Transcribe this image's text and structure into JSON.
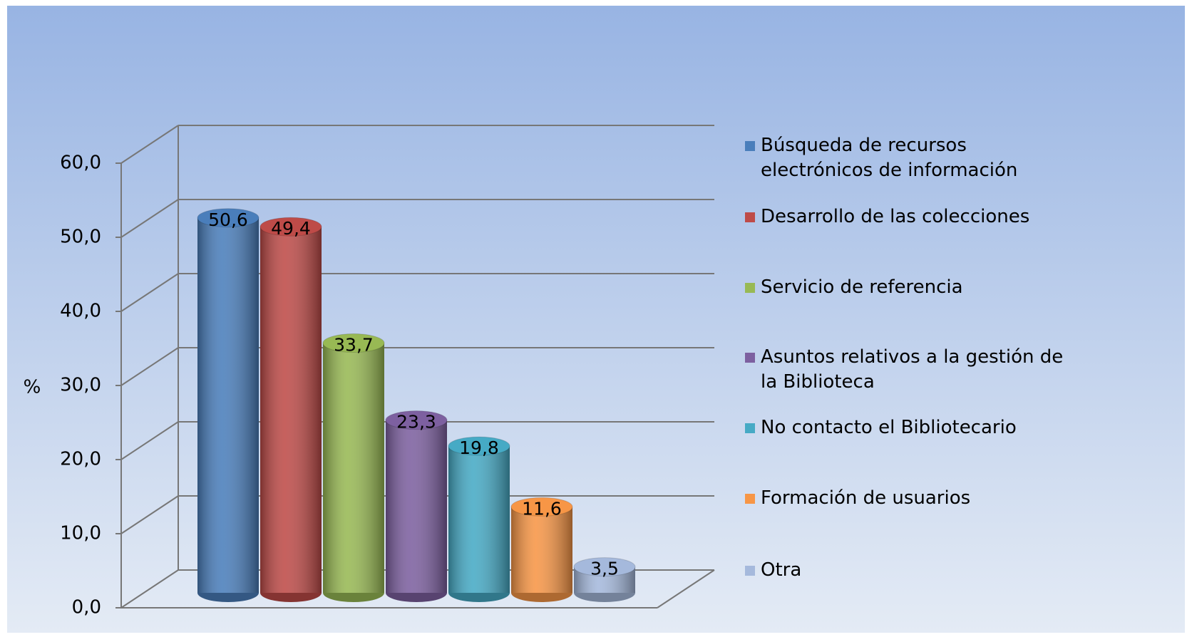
{
  "chart_data": {
    "type": "bar3d",
    "ylabel": "%",
    "categories": [
      "Búsqueda de recursos electrónicos de información",
      "Desarrollo de las colecciones",
      "Servicio de referencia",
      "Asuntos relativos a la  gestión de la Biblioteca",
      "No contacto el Bibliotecario",
      "Formación de usuarios",
      "Otra"
    ],
    "values": [
      50.6,
      49.4,
      33.7,
      23.3,
      19.8,
      11.6,
      3.5
    ],
    "value_labels": [
      "50,6",
      "49,4",
      "33,7",
      "23,3",
      "19,8",
      "11,6",
      "3,5"
    ],
    "colors": [
      "#4a7ebb",
      "#be4b48",
      "#98b954",
      "#7d60a0",
      "#46aac5",
      "#f79646",
      "#a5b9dc"
    ],
    "ylim": [
      0,
      60
    ],
    "yticks": [
      {
        "value": 0,
        "label": "0,0"
      },
      {
        "value": 10,
        "label": "10,0"
      },
      {
        "value": 20,
        "label": "20,0"
      },
      {
        "value": 30,
        "label": "30,0"
      },
      {
        "value": 40,
        "label": "40,0"
      },
      {
        "value": 50,
        "label": "50,0"
      },
      {
        "value": 60,
        "label": "60,0"
      }
    ],
    "grid": true,
    "legend": "right"
  }
}
